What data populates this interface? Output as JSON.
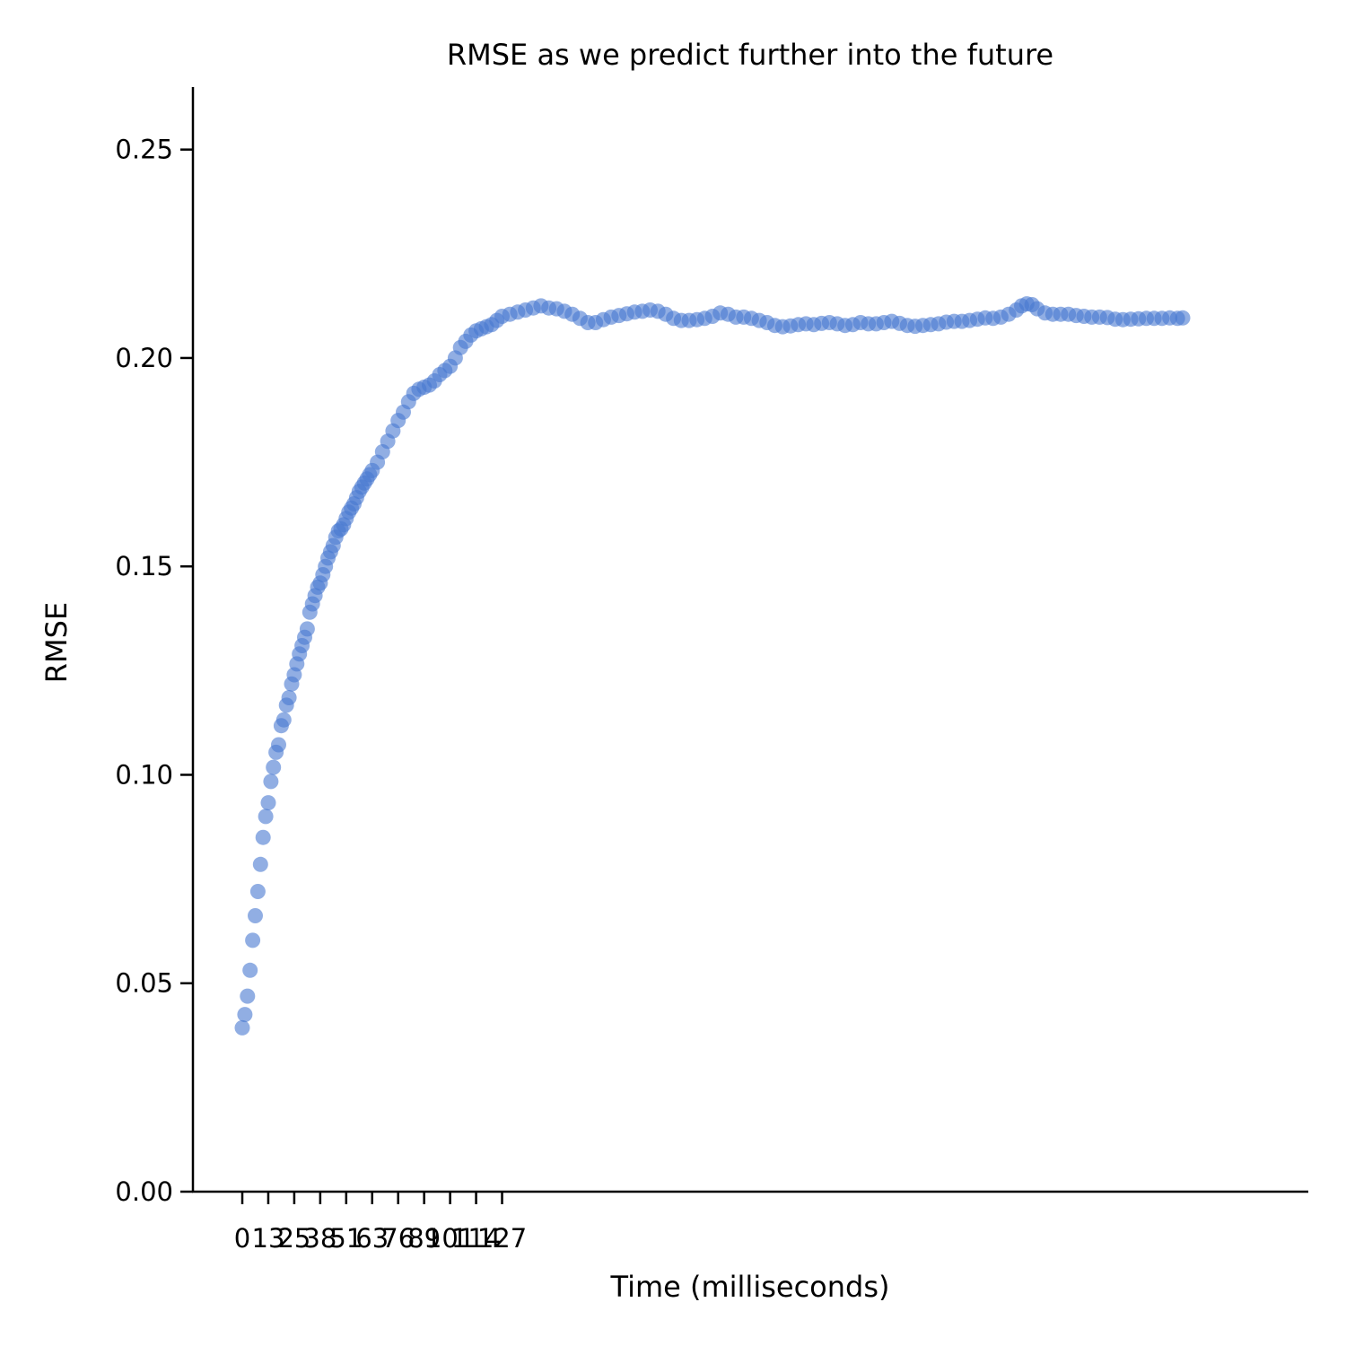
{
  "chart_data": {
    "type": "scatter",
    "title": "RMSE as we predict further into the future",
    "xlabel": "Time (milliseconds)",
    "ylabel": "RMSE",
    "ylim": [
      0.0,
      0.265
    ],
    "xlim": [
      -1.9,
      41.0
    ],
    "yticks": [
      "0.00",
      "0.05",
      "0.10",
      "0.15",
      "0.20",
      "0.25"
    ],
    "xticks": [
      {
        "pos": 0,
        "label": "0"
      },
      {
        "pos": 1,
        "label": "13"
      },
      {
        "pos": 2,
        "label": "25"
      },
      {
        "pos": 3,
        "label": "38"
      },
      {
        "pos": 4,
        "label": "51"
      },
      {
        "pos": 5,
        "label": "63"
      },
      {
        "pos": 6,
        "label": "76"
      },
      {
        "pos": 7,
        "label": "89"
      },
      {
        "pos": 8,
        "label": "101"
      },
      {
        "pos": 9,
        "label": "114"
      },
      {
        "pos": 10,
        "label": "127"
      }
    ],
    "point_color": "#4878d0",
    "series": [
      {
        "name": "RMSE",
        "points": [
          [
            0.0,
            0.0393
          ],
          [
            0.1,
            0.0425
          ],
          [
            0.2,
            0.0469
          ],
          [
            0.3,
            0.0531
          ],
          [
            0.4,
            0.0603
          ],
          [
            0.5,
            0.0662
          ],
          [
            0.6,
            0.072
          ],
          [
            0.7,
            0.0785
          ],
          [
            0.8,
            0.085
          ],
          [
            0.9,
            0.09
          ],
          [
            1.0,
            0.0933
          ],
          [
            1.1,
            0.0984
          ],
          [
            1.2,
            0.1018
          ],
          [
            1.3,
            0.1054
          ],
          [
            1.4,
            0.1072
          ],
          [
            1.5,
            0.1118
          ],
          [
            1.6,
            0.1132
          ],
          [
            1.7,
            0.1167
          ],
          [
            1.8,
            0.1185
          ],
          [
            1.9,
            0.1218
          ],
          [
            2.0,
            0.124
          ],
          [
            2.1,
            0.1266
          ],
          [
            2.2,
            0.129
          ],
          [
            2.3,
            0.131
          ],
          [
            2.4,
            0.133
          ],
          [
            2.5,
            0.135
          ],
          [
            2.6,
            0.139
          ],
          [
            2.7,
            0.141
          ],
          [
            2.8,
            0.143
          ],
          [
            2.9,
            0.145
          ],
          [
            3.0,
            0.146
          ],
          [
            3.1,
            0.148
          ],
          [
            3.2,
            0.15
          ],
          [
            3.3,
            0.152
          ],
          [
            3.4,
            0.1535
          ],
          [
            3.5,
            0.155
          ],
          [
            3.6,
            0.157
          ],
          [
            3.7,
            0.1585
          ],
          [
            3.8,
            0.159
          ],
          [
            3.9,
            0.16
          ],
          [
            4.0,
            0.1615
          ],
          [
            4.1,
            0.163
          ],
          [
            4.2,
            0.164
          ],
          [
            4.3,
            0.165
          ],
          [
            4.4,
            0.1665
          ],
          [
            4.5,
            0.168
          ],
          [
            4.6,
            0.169
          ],
          [
            4.7,
            0.17
          ],
          [
            4.8,
            0.171
          ],
          [
            4.9,
            0.172
          ],
          [
            5.0,
            0.173
          ],
          [
            5.2,
            0.175
          ],
          [
            5.4,
            0.1775
          ],
          [
            5.6,
            0.18
          ],
          [
            5.8,
            0.1825
          ],
          [
            6.0,
            0.185
          ],
          [
            6.2,
            0.187
          ],
          [
            6.4,
            0.1895
          ],
          [
            6.6,
            0.1915
          ],
          [
            6.8,
            0.1925
          ],
          [
            7.0,
            0.193
          ],
          [
            7.2,
            0.1935
          ],
          [
            7.4,
            0.1945
          ],
          [
            7.6,
            0.196
          ],
          [
            7.8,
            0.197
          ],
          [
            8.0,
            0.198
          ],
          [
            8.2,
            0.2
          ],
          [
            8.4,
            0.2025
          ],
          [
            8.6,
            0.204
          ],
          [
            8.8,
            0.2055
          ],
          [
            9.0,
            0.2065
          ],
          [
            9.2,
            0.207
          ],
          [
            9.4,
            0.2075
          ],
          [
            9.6,
            0.208
          ],
          [
            9.8,
            0.209
          ],
          [
            10.0,
            0.21
          ],
          [
            10.3,
            0.2105
          ],
          [
            10.6,
            0.211
          ],
          [
            10.9,
            0.2115
          ],
          [
            11.2,
            0.212
          ],
          [
            11.5,
            0.2125
          ],
          [
            11.8,
            0.212
          ],
          [
            12.1,
            0.2118
          ],
          [
            12.4,
            0.2112
          ],
          [
            12.7,
            0.2105
          ],
          [
            13.0,
            0.2095
          ],
          [
            13.3,
            0.2085
          ],
          [
            13.6,
            0.2085
          ],
          [
            13.9,
            0.2092
          ],
          [
            14.2,
            0.2098
          ],
          [
            14.5,
            0.2102
          ],
          [
            14.8,
            0.2106
          ],
          [
            15.1,
            0.211
          ],
          [
            15.4,
            0.2112
          ],
          [
            15.7,
            0.2115
          ],
          [
            16.0,
            0.2112
          ],
          [
            16.3,
            0.2105
          ],
          [
            16.6,
            0.2095
          ],
          [
            16.9,
            0.209
          ],
          [
            17.2,
            0.209
          ],
          [
            17.5,
            0.2092
          ],
          [
            17.8,
            0.2095
          ],
          [
            18.1,
            0.21
          ],
          [
            18.4,
            0.2108
          ],
          [
            18.7,
            0.2105
          ],
          [
            19.0,
            0.2098
          ],
          [
            19.3,
            0.2098
          ],
          [
            19.6,
            0.2095
          ],
          [
            19.9,
            0.209
          ],
          [
            20.2,
            0.2085
          ],
          [
            20.5,
            0.2078
          ],
          [
            20.8,
            0.2075
          ],
          [
            21.1,
            0.2077
          ],
          [
            21.4,
            0.208
          ],
          [
            21.7,
            0.2082
          ],
          [
            22.0,
            0.208
          ],
          [
            22.3,
            0.2083
          ],
          [
            22.6,
            0.2085
          ],
          [
            22.9,
            0.2082
          ],
          [
            23.2,
            0.2078
          ],
          [
            23.5,
            0.208
          ],
          [
            23.8,
            0.2085
          ],
          [
            24.1,
            0.2082
          ],
          [
            24.4,
            0.2082
          ],
          [
            24.7,
            0.2085
          ],
          [
            25.0,
            0.2088
          ],
          [
            25.3,
            0.2083
          ],
          [
            25.6,
            0.2078
          ],
          [
            25.9,
            0.2076
          ],
          [
            26.2,
            0.2078
          ],
          [
            26.5,
            0.208
          ],
          [
            26.8,
            0.2082
          ],
          [
            27.1,
            0.2086
          ],
          [
            27.4,
            0.2088
          ],
          [
            27.7,
            0.2088
          ],
          [
            28.0,
            0.209
          ],
          [
            28.3,
            0.2093
          ],
          [
            28.6,
            0.2096
          ],
          [
            28.9,
            0.2095
          ],
          [
            29.2,
            0.2098
          ],
          [
            29.5,
            0.2105
          ],
          [
            29.8,
            0.2115
          ],
          [
            30.0,
            0.2125
          ],
          [
            30.2,
            0.213
          ],
          [
            30.4,
            0.2128
          ],
          [
            30.6,
            0.2118
          ],
          [
            30.9,
            0.2108
          ],
          [
            31.2,
            0.2105
          ],
          [
            31.5,
            0.2105
          ],
          [
            31.8,
            0.2105
          ],
          [
            32.1,
            0.2102
          ],
          [
            32.4,
            0.21
          ],
          [
            32.7,
            0.2098
          ],
          [
            33.0,
            0.2098
          ],
          [
            33.3,
            0.2097
          ],
          [
            33.6,
            0.2093
          ],
          [
            33.9,
            0.2092
          ],
          [
            34.2,
            0.2093
          ],
          [
            34.5,
            0.2094
          ],
          [
            34.8,
            0.2095
          ],
          [
            35.1,
            0.2095
          ],
          [
            35.4,
            0.2095
          ],
          [
            35.7,
            0.2096
          ],
          [
            36.0,
            0.2095
          ],
          [
            36.2,
            0.2096
          ]
        ]
      }
    ]
  }
}
